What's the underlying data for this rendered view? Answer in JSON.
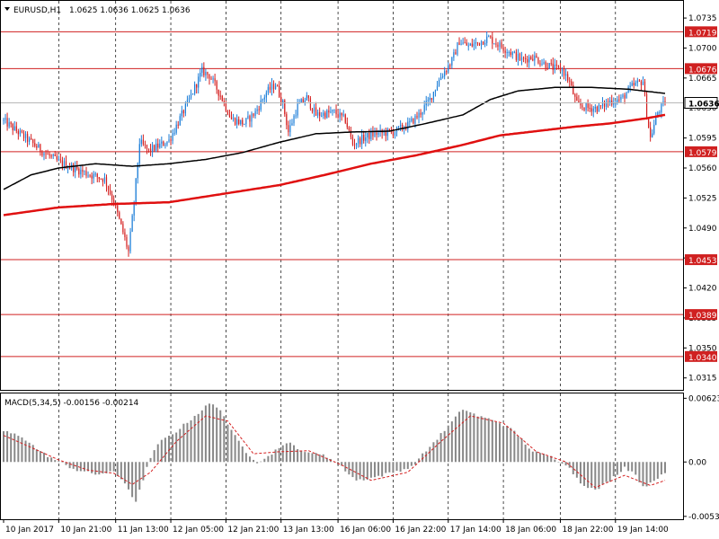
{
  "header": {
    "symbol": "EURUSD,H1",
    "ohlc": "1.0625 1.0636 1.0625 1.0636",
    "dropdown_icon": "triangle-down-icon"
  },
  "macd_header": {
    "text": "MACD(5,34,5) -0.00156 -0.00214"
  },
  "colors": {
    "background": "#ffffff",
    "bull": "#1e7fd8",
    "bear": "#d42020",
    "ma_fast": "#000000",
    "ma_slow": "#e01010",
    "level_line": "#d02020",
    "macd_hist": "#888888",
    "macd_signal": "#d42020"
  },
  "chart_data": [
    {
      "type": "candlestick",
      "name": "EURUSD,H1",
      "ylim": [
        1.03,
        1.0755
      ],
      "y_ticks": [
        "1.0735",
        "1.0700",
        "1.0665",
        "1.0630",
        "1.0595",
        "1.0560",
        "1.0525",
        "1.0490",
        "1.0455",
        "1.0420",
        "1.0385",
        "1.0350",
        "1.0315"
      ],
      "x_ticks": [
        "10 Jan 2017",
        "10 Jan 21:00",
        "11 Jan 13:00",
        "12 Jan 05:00",
        "12 Jan 21:00",
        "13 Jan 13:00",
        "16 Jan 06:00",
        "16 Jan 22:00",
        "17 Jan 14:00",
        "18 Jan 06:00",
        "18 Jan 22:00",
        "19 Jan 14:00"
      ],
      "current_price": "1.0636",
      "levels": [
        "1.0719",
        "1.0676",
        "1.0579",
        "1.0453",
        "1.0389",
        "1.0340"
      ],
      "path_anchors": [
        [
          0,
          1.0615
        ],
        [
          12,
          1.0595
        ],
        [
          22,
          1.0578
        ],
        [
          30,
          1.0567
        ],
        [
          38,
          1.056
        ],
        [
          46,
          1.0553
        ],
        [
          55,
          1.0547
        ],
        [
          60,
          1.052
        ],
        [
          65,
          1.0485
        ],
        [
          68,
          1.0462
        ],
        [
          71,
          1.052
        ],
        [
          74,
          1.059
        ],
        [
          79,
          1.058
        ],
        [
          90,
          1.0592
        ],
        [
          100,
          1.0635
        ],
        [
          108,
          1.0673
        ],
        [
          112,
          1.0668
        ],
        [
          118,
          1.0645
        ],
        [
          124,
          1.0617
        ],
        [
          131,
          1.0612
        ],
        [
          137,
          1.0625
        ],
        [
          143,
          1.0648
        ],
        [
          148,
          1.0658
        ],
        [
          152,
          1.0635
        ],
        [
          155,
          1.0602
        ],
        [
          160,
          1.0632
        ],
        [
          165,
          1.0642
        ],
        [
          170,
          1.0622
        ],
        [
          180,
          1.0625
        ],
        [
          186,
          1.0616
        ],
        [
          190,
          1.0588
        ],
        [
          196,
          1.0595
        ],
        [
          202,
          1.06
        ],
        [
          212,
          1.0602
        ],
        [
          220,
          1.061
        ],
        [
          226,
          1.0622
        ],
        [
          232,
          1.064
        ],
        [
          238,
          1.0667
        ],
        [
          244,
          1.0685
        ],
        [
          248,
          1.0708
        ],
        [
          253,
          1.0702
        ],
        [
          258,
          1.0706
        ],
        [
          264,
          1.0712
        ],
        [
          270,
          1.0703
        ],
        [
          276,
          1.0695
        ],
        [
          282,
          1.0686
        ],
        [
          288,
          1.069
        ],
        [
          294,
          1.0682
        ],
        [
          300,
          1.0676
        ],
        [
          304,
          1.0675
        ],
        [
          308,
          1.066
        ],
        [
          312,
          1.0634
        ],
        [
          318,
          1.063
        ],
        [
          324,
          1.063
        ],
        [
          330,
          1.0638
        ],
        [
          336,
          1.064
        ],
        [
          342,
          1.0655
        ],
        [
          348,
          1.0662
        ],
        [
          350,
          1.0622
        ],
        [
          352,
          1.0595
        ],
        [
          356,
          1.0625
        ],
        [
          360,
          1.0636
        ]
      ],
      "ma_fast": {
        "name": "MA fast",
        "anchors": [
          [
            0,
            1.0535
          ],
          [
            15,
            1.0552
          ],
          [
            30,
            1.056
          ],
          [
            50,
            1.0565
          ],
          [
            70,
            1.0562
          ],
          [
            90,
            1.0565
          ],
          [
            110,
            1.057
          ],
          [
            130,
            1.0578
          ],
          [
            150,
            1.059
          ],
          [
            170,
            1.06
          ],
          [
            190,
            1.0602
          ],
          [
            210,
            1.0603
          ],
          [
            230,
            1.0612
          ],
          [
            250,
            1.0622
          ],
          [
            265,
            1.064
          ],
          [
            280,
            1.065
          ],
          [
            300,
            1.0654
          ],
          [
            320,
            1.0654
          ],
          [
            340,
            1.0652
          ],
          [
            360,
            1.0647
          ]
        ]
      },
      "ma_slow": {
        "name": "MA slow",
        "anchors": [
          [
            0,
            1.0505
          ],
          [
            30,
            1.0514
          ],
          [
            60,
            1.0518
          ],
          [
            90,
            1.052
          ],
          [
            120,
            1.053
          ],
          [
            150,
            1.054
          ],
          [
            175,
            1.0552
          ],
          [
            200,
            1.0565
          ],
          [
            225,
            1.0575
          ],
          [
            250,
            1.0587
          ],
          [
            270,
            1.0598
          ],
          [
            290,
            1.0603
          ],
          [
            310,
            1.0608
          ],
          [
            330,
            1.0612
          ],
          [
            350,
            1.0618
          ],
          [
            360,
            1.0622
          ]
        ]
      }
    },
    {
      "type": "histogram",
      "name": "MACD(5,34,5)",
      "ylim": [
        -0.0056,
        0.0067
      ],
      "y_ticks": [
        "0.00623",
        "0.00",
        "-0.00532"
      ],
      "hist_anchors": [
        [
          0,
          0.003
        ],
        [
          10,
          0.0025
        ],
        [
          20,
          0.001
        ],
        [
          30,
          0.0
        ],
        [
          40,
          -0.0008
        ],
        [
          50,
          -0.0012
        ],
        [
          60,
          -0.001
        ],
        [
          66,
          -0.002
        ],
        [
          72,
          -0.004
        ],
        [
          78,
          -0.0005
        ],
        [
          84,
          0.0018
        ],
        [
          94,
          0.003
        ],
        [
          104,
          0.0045
        ],
        [
          112,
          0.0057
        ],
        [
          118,
          0.0052
        ],
        [
          124,
          0.003
        ],
        [
          132,
          0.001
        ],
        [
          138,
          0.0
        ],
        [
          144,
          0.0005
        ],
        [
          150,
          0.0015
        ],
        [
          156,
          0.0018
        ],
        [
          166,
          0.0008
        ],
        [
          174,
          0.0008
        ],
        [
          184,
          -0.0005
        ],
        [
          192,
          -0.0018
        ],
        [
          202,
          -0.0015
        ],
        [
          212,
          -0.001
        ],
        [
          222,
          -0.0005
        ],
        [
          232,
          0.0015
        ],
        [
          242,
          0.0035
        ],
        [
          250,
          0.0052
        ],
        [
          258,
          0.0045
        ],
        [
          268,
          0.004
        ],
        [
          278,
          0.003
        ],
        [
          288,
          0.001
        ],
        [
          298,
          0.0005
        ],
        [
          306,
          -0.0002
        ],
        [
          314,
          -0.002
        ],
        [
          322,
          -0.0028
        ],
        [
          330,
          -0.0018
        ],
        [
          338,
          -0.0005
        ],
        [
          344,
          -0.0012
        ],
        [
          348,
          -0.0025
        ],
        [
          352,
          -0.002
        ],
        [
          356,
          -0.0015
        ],
        [
          360,
          -0.0012
        ]
      ],
      "signal_anchors": [
        [
          0,
          0.0026
        ],
        [
          14,
          0.0015
        ],
        [
          30,
          0.0002
        ],
        [
          46,
          -0.0008
        ],
        [
          60,
          -0.0011
        ],
        [
          70,
          -0.0022
        ],
        [
          80,
          -0.001
        ],
        [
          94,
          0.002
        ],
        [
          110,
          0.0045
        ],
        [
          122,
          0.004
        ],
        [
          136,
          0.0008
        ],
        [
          150,
          0.001
        ],
        [
          166,
          0.0011
        ],
        [
          184,
          -0.0003
        ],
        [
          200,
          -0.0018
        ],
        [
          220,
          -0.001
        ],
        [
          238,
          0.002
        ],
        [
          254,
          0.0045
        ],
        [
          272,
          0.0038
        ],
        [
          290,
          0.001
        ],
        [
          306,
          0.0
        ],
        [
          322,
          -0.0025
        ],
        [
          338,
          -0.0013
        ],
        [
          352,
          -0.0023
        ],
        [
          360,
          -0.0018
        ]
      ]
    }
  ]
}
